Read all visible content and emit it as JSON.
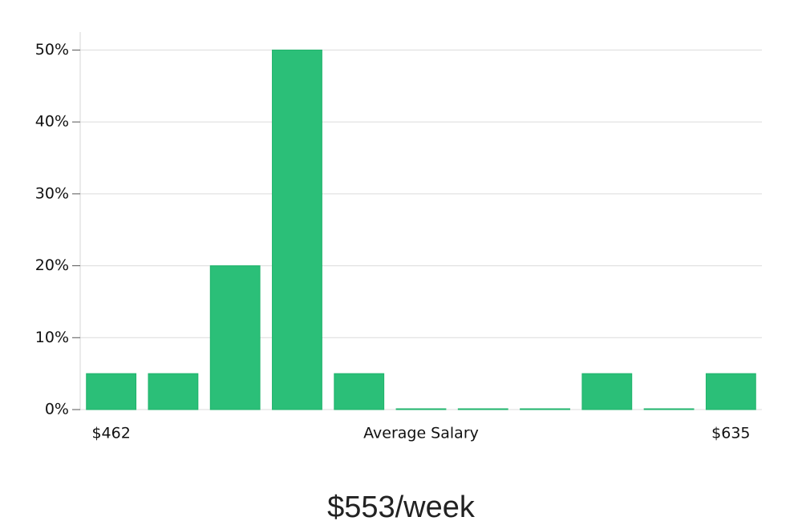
{
  "chart_data": {
    "type": "bar",
    "categories": [
      "$462",
      null,
      null,
      null,
      null,
      null,
      null,
      null,
      null,
      null,
      "$635"
    ],
    "values": [
      5,
      5,
      20,
      50,
      5,
      0,
      0,
      0,
      5,
      0,
      5
    ],
    "color": "#2bbf78",
    "xlabel": "Average Salary",
    "caption": "$553/week",
    "ylim": [
      0,
      52.5
    ],
    "yticks": [
      {
        "value": 0,
        "label": "0%"
      },
      {
        "value": 10,
        "label": "10%"
      },
      {
        "value": 20,
        "label": "20%"
      },
      {
        "value": 30,
        "label": "30%"
      },
      {
        "value": 40,
        "label": "40%"
      },
      {
        "value": 50,
        "label": "50%"
      }
    ],
    "grid": true
  }
}
